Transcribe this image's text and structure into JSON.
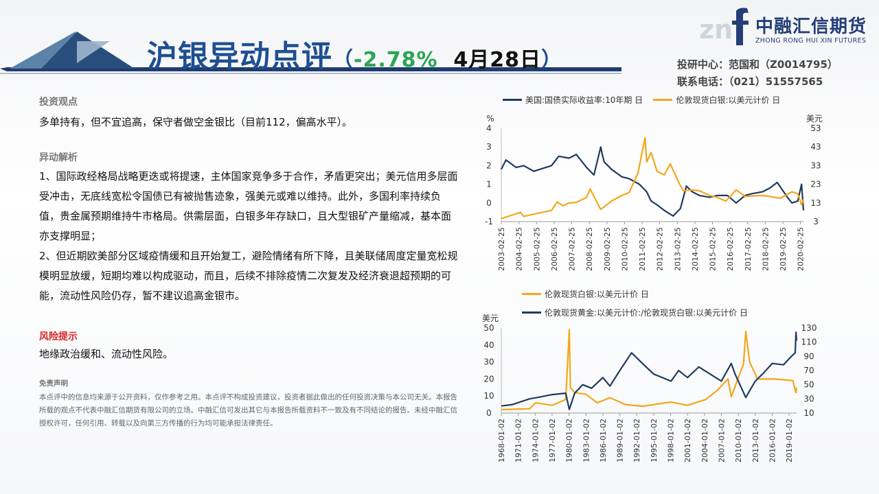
{
  "header": {
    "title_main": "沪银",
    "title_rest": "异动点评",
    "open_paren": "（",
    "change": "-2.78%",
    "date": "4月28日",
    "close_paren": "）",
    "logo_cn": "中融汇信期货",
    "logo_en": "ZHONG RONG HUI XIN FUTURES",
    "contact_line1": "投研中心：范国和（Z0014795）",
    "contact_line2": "联系电话：（021）51557565",
    "colors": {
      "title": "#1d4f91",
      "change": "#2aa653",
      "logo": "#243f77"
    }
  },
  "left": {
    "view_title": "投资观点",
    "view_text": "多单持有，但不宜追高，保守者做空金银比（目前112，偏高水平）。",
    "analysis_title": "异动解析",
    "analysis_p1": "1、国际政经格局战略更迭或将提速，主体国家竞争多于合作，矛盾更突出；美元信用多层面受冲击，无底线宽松令国债已有被抛售迹象，强美元或难以维持。此外，多国利率持续负值，贵金属预期维持牛市格局。供需层面，白银多年存缺口，且大型银矿产量缩减，基本面亦支撑明显；",
    "analysis_p2": "2、但近期欧美部分区域疫情缓和且开始复工，避险情绪有所下降，且美联储周度定量宽松规模明显放缓，短期均难以构成驱动，而且，后续不排除疫情二次复发及经济衰退超预期的可能，流动性风险仍存，暂不建议追高金银市。",
    "risk_title": "风险提示",
    "risk_text": "地缘政治缓和、流动性风险。",
    "disclaimer_title": "免责声明",
    "disclaimer_text": "本点评中的信息均来源于公开资料，仅作参考之用。本点评不构成投资建议，投资者据此做出的任何投资决策与本公司无关。本报告所载的观点不代表中融汇信期货有限公司的立场。中融汇信可发出其它与本报告所载资料不一致及有不同结论的报告。未经中融汇信授权许可，任何引用、转载以及向第三方传播的行为均可能承担法律责任。"
  },
  "chart_data": [
    {
      "type": "line",
      "x_start": "2003-02-25",
      "x_end": "2020-04-28",
      "xtick_labels": [
        "2003-02-25",
        "2004-02-25",
        "2005-02-25",
        "2006-02-25",
        "2007-02-25",
        "2008-02-25",
        "2009-02-25",
        "2010-02-25",
        "2011-02-25",
        "2012-02-25",
        "2013-02-25",
        "2014-02-25",
        "2015-02-25",
        "2016-02-25",
        "2017-02-25",
        "2018-02-25",
        "2019-02-25",
        "2020-02-25"
      ],
      "left_axis_unit": "%",
      "left_ylim": [
        -1,
        4
      ],
      "left_yticks": [
        -1,
        0,
        1,
        2,
        3,
        4
      ],
      "right_axis_unit": "美元",
      "right_ylim": [
        3,
        53
      ],
      "right_yticks": [
        3,
        13,
        23,
        33,
        43,
        53
      ],
      "legend_position": "top",
      "series": [
        {
          "name": "美国:国债实际收益率:10年期 日",
          "axis": "left",
          "color": "#1f3a5f",
          "x": [
            "2003-02-25",
            "2003-06-01",
            "2004-01-01",
            "2004-06-01",
            "2005-01-01",
            "2006-01-01",
            "2006-06-01",
            "2007-01-01",
            "2007-06-01",
            "2008-01-01",
            "2008-06-01",
            "2008-10-20",
            "2008-11-20",
            "2009-01-01",
            "2009-06-01",
            "2010-01-01",
            "2010-06-01",
            "2011-01-01",
            "2011-06-01",
            "2011-09-01",
            "2012-01-01",
            "2012-06-01",
            "2012-12-01",
            "2013-05-01",
            "2013-09-01",
            "2014-01-01",
            "2014-06-01",
            "2015-01-01",
            "2015-06-01",
            "2016-01-01",
            "2016-07-01",
            "2017-01-01",
            "2017-06-01",
            "2018-01-01",
            "2018-06-01",
            "2018-11-01",
            "2019-06-01",
            "2019-09-01",
            "2020-01-01",
            "2020-03-19",
            "2020-04-28"
          ],
          "y": [
            1.8,
            2.3,
            1.9,
            2.0,
            1.7,
            2.0,
            2.5,
            2.4,
            2.6,
            1.9,
            1.5,
            3.0,
            2.6,
            2.2,
            1.8,
            1.4,
            1.3,
            1.0,
            0.6,
            0.1,
            -0.1,
            -0.4,
            -0.7,
            -0.3,
            0.9,
            0.6,
            0.4,
            0.3,
            0.4,
            0.4,
            0.0,
            0.4,
            0.5,
            0.6,
            0.8,
            1.1,
            0.3,
            0.0,
            0.1,
            1.0,
            -0.4
          ]
        },
        {
          "name": "伦敦现货白银:以美元计价 日",
          "axis": "right",
          "color": "#f2a71b",
          "x": [
            "2003-02-25",
            "2004-04-01",
            "2004-06-01",
            "2005-01-01",
            "2006-01-01",
            "2006-05-01",
            "2006-09-01",
            "2007-01-01",
            "2007-06-01",
            "2008-01-01",
            "2008-03-15",
            "2008-10-20",
            "2009-01-01",
            "2009-06-01",
            "2010-01-01",
            "2010-06-01",
            "2010-12-01",
            "2011-04-28",
            "2011-06-01",
            "2011-09-01",
            "2012-01-01",
            "2012-06-01",
            "2012-10-01",
            "2013-04-15",
            "2013-07-01",
            "2014-01-01",
            "2014-06-01",
            "2015-01-01",
            "2015-06-01",
            "2015-12-01",
            "2016-07-01",
            "2017-01-01",
            "2018-01-01",
            "2018-06-01",
            "2019-01-01",
            "2019-09-01",
            "2020-01-01",
            "2020-03-19",
            "2020-04-28"
          ],
          "y": [
            4.6,
            8.0,
            5.8,
            7.0,
            9.0,
            13.5,
            11.5,
            13.0,
            13.3,
            16.0,
            20.5,
            9.5,
            11.0,
            14.0,
            17.0,
            18.5,
            29.0,
            48.0,
            35.0,
            40.0,
            30.0,
            28.0,
            34.0,
            23.0,
            19.5,
            20.0,
            19.5,
            17.0,
            16.0,
            14.0,
            20.0,
            16.5,
            17.0,
            16.5,
            15.5,
            19.0,
            18.0,
            12.0,
            15.0
          ]
        }
      ]
    },
    {
      "type": "line",
      "x_start": "1968-01-02",
      "x_end": "2020-04-28",
      "xtick_labels": [
        "1968-01-02",
        "1971-01-02",
        "1974-01-02",
        "1977-01-02",
        "1980-01-02",
        "1983-01-02",
        "1986-01-02",
        "1989-01-02",
        "1992-01-02",
        "1995-01-02",
        "1998-01-02",
        "2001-01-02",
        "2004-01-02",
        "2007-01-02",
        "2010-01-02",
        "2013-01-02",
        "2016-01-02",
        "2019-01-02"
      ],
      "left_axis_unit": "美元",
      "left_ylim": [
        0,
        50
      ],
      "left_yticks": [
        0,
        10,
        20,
        30,
        40,
        50
      ],
      "right_ylim": [
        10,
        130
      ],
      "right_yticks": [
        10,
        30,
        50,
        70,
        90,
        110,
        130
      ],
      "legend_position": "top",
      "series": [
        {
          "name": "伦敦现货白银:以美元计价 日",
          "axis": "left",
          "color": "#f2a71b",
          "x": [
            "1968-01-02",
            "1973-01-01",
            "1974-02-01",
            "1977-01-01",
            "1979-06-01",
            "1980-01-18",
            "1980-04-01",
            "1981-01-01",
            "1983-01-01",
            "1985-01-01",
            "1987-04-01",
            "1990-01-01",
            "1993-01-01",
            "1998-02-01",
            "2001-01-01",
            "2004-04-01",
            "2006-05-01",
            "2008-03-01",
            "2008-10-01",
            "2010-12-01",
            "2011-04-28",
            "2012-01-01",
            "2013-06-01",
            "2016-07-01",
            "2019-09-01",
            "2020-03-19",
            "2020-04-28"
          ],
          "y": [
            2.0,
            2.5,
            6.0,
            4.5,
            8.0,
            49.0,
            15.0,
            12.0,
            11.0,
            6.0,
            9.0,
            5.0,
            4.0,
            6.5,
            4.5,
            8.0,
            13.5,
            20.0,
            9.5,
            29.0,
            48.0,
            30.0,
            20.0,
            20.0,
            19.0,
            12.0,
            15.0
          ]
        },
        {
          "name": "伦敦现货黄金:以美元计价:/伦敦现货白银:以美元计价 日",
          "axis": "right",
          "color": "#1f3a5f",
          "x": [
            "1968-01-02",
            "1970-01-01",
            "1973-01-01",
            "1974-06-01",
            "1977-01-01",
            "1979-06-01",
            "1980-01-18",
            "1981-01-01",
            "1982-06-01",
            "1984-01-01",
            "1986-01-01",
            "1987-04-01",
            "1989-01-01",
            "1991-02-01",
            "1993-01-01",
            "1995-01-01",
            "1998-02-01",
            "1999-06-01",
            "2001-01-01",
            "2003-01-01",
            "2005-01-01",
            "2007-01-01",
            "2008-10-01",
            "2009-06-01",
            "2011-04-28",
            "2013-01-01",
            "2014-06-01",
            "2016-01-01",
            "2018-01-01",
            "2019-06-01",
            "2020-02-01",
            "2020-03-19",
            "2020-04-28"
          ],
          "y": [
            20,
            22,
            30,
            32,
            36,
            38,
            15,
            38,
            50,
            45,
            60,
            48,
            70,
            95,
            80,
            65,
            55,
            70,
            60,
            75,
            65,
            55,
            80,
            65,
            32,
            55,
            66,
            80,
            78,
            90,
            95,
            124,
            112
          ]
        }
      ]
    }
  ]
}
